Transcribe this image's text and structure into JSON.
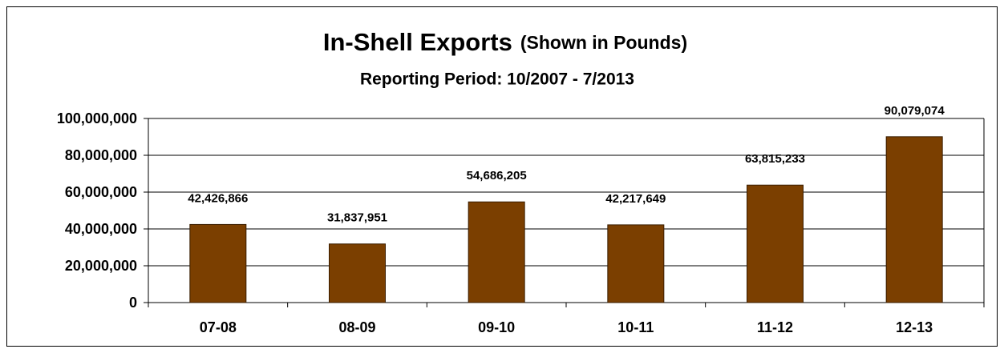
{
  "chart_data": {
    "type": "bar",
    "title": "In-Shell Exports",
    "title_note": "(Shown in Pounds)",
    "subtitle": "Reporting Period:  10/2007 - 7/2013",
    "categories": [
      "07-08",
      "08-09",
      "09-10",
      "10-11",
      "11-12",
      "12-13"
    ],
    "values": [
      42426866,
      31837951,
      54686205,
      42217649,
      63815233,
      90079074
    ],
    "value_labels": [
      "42,426,866",
      "31,837,951",
      "54,686,205",
      "42,217,649",
      "63,815,233",
      "90,079,074"
    ],
    "color": "#7b3f00",
    "ylim": [
      0,
      100000000
    ],
    "yticks": [
      0,
      {
        "value": 20000000,
        "label": "20,000,000"
      },
      {
        "value": 40000000,
        "label": "40,000,000"
      },
      {
        "value": 60000000,
        "label": "60,000,000"
      },
      {
        "value": 80000000,
        "label": "80,000,000"
      },
      {
        "value": 100000000,
        "label": "100,000,000"
      }
    ],
    "grid": true
  }
}
